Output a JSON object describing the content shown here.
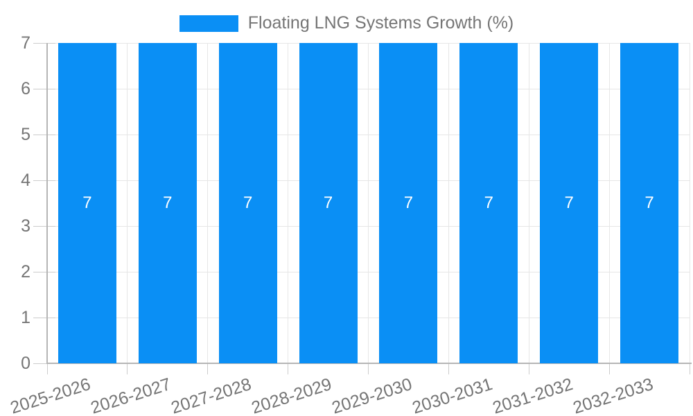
{
  "chart_data": {
    "type": "bar",
    "title": "Floating LNG Systems Growth (%)",
    "categories": [
      "2025-2026",
      "2026-2027",
      "2027-2028",
      "2028-2029",
      "2029-2030",
      "2030-2031",
      "2031-2032",
      "2032-2033"
    ],
    "series": [
      {
        "name": "Floating LNG Systems Growth (%)",
        "values": [
          7,
          7,
          7,
          7,
          7,
          7,
          7,
          7
        ]
      }
    ],
    "bar_value_labels": [
      "7",
      "7",
      "7",
      "7",
      "7",
      "7",
      "7",
      "7"
    ],
    "xlabel": "",
    "ylabel": "",
    "ylim": [
      0,
      7
    ],
    "yticks": [
      0,
      1,
      2,
      3,
      4,
      5,
      6,
      7
    ],
    "grid": true,
    "legend_position": "top-center",
    "x_label_rotation_deg": -17.5,
    "colors": {
      "bar": "#0a8ff5",
      "bar_label": "#ffffff",
      "axis_text": "#757575",
      "axis_line": "#b5b5b5",
      "gridline": "#e6e6e6",
      "tick": "#cccccc",
      "background": "#ffffff"
    }
  }
}
